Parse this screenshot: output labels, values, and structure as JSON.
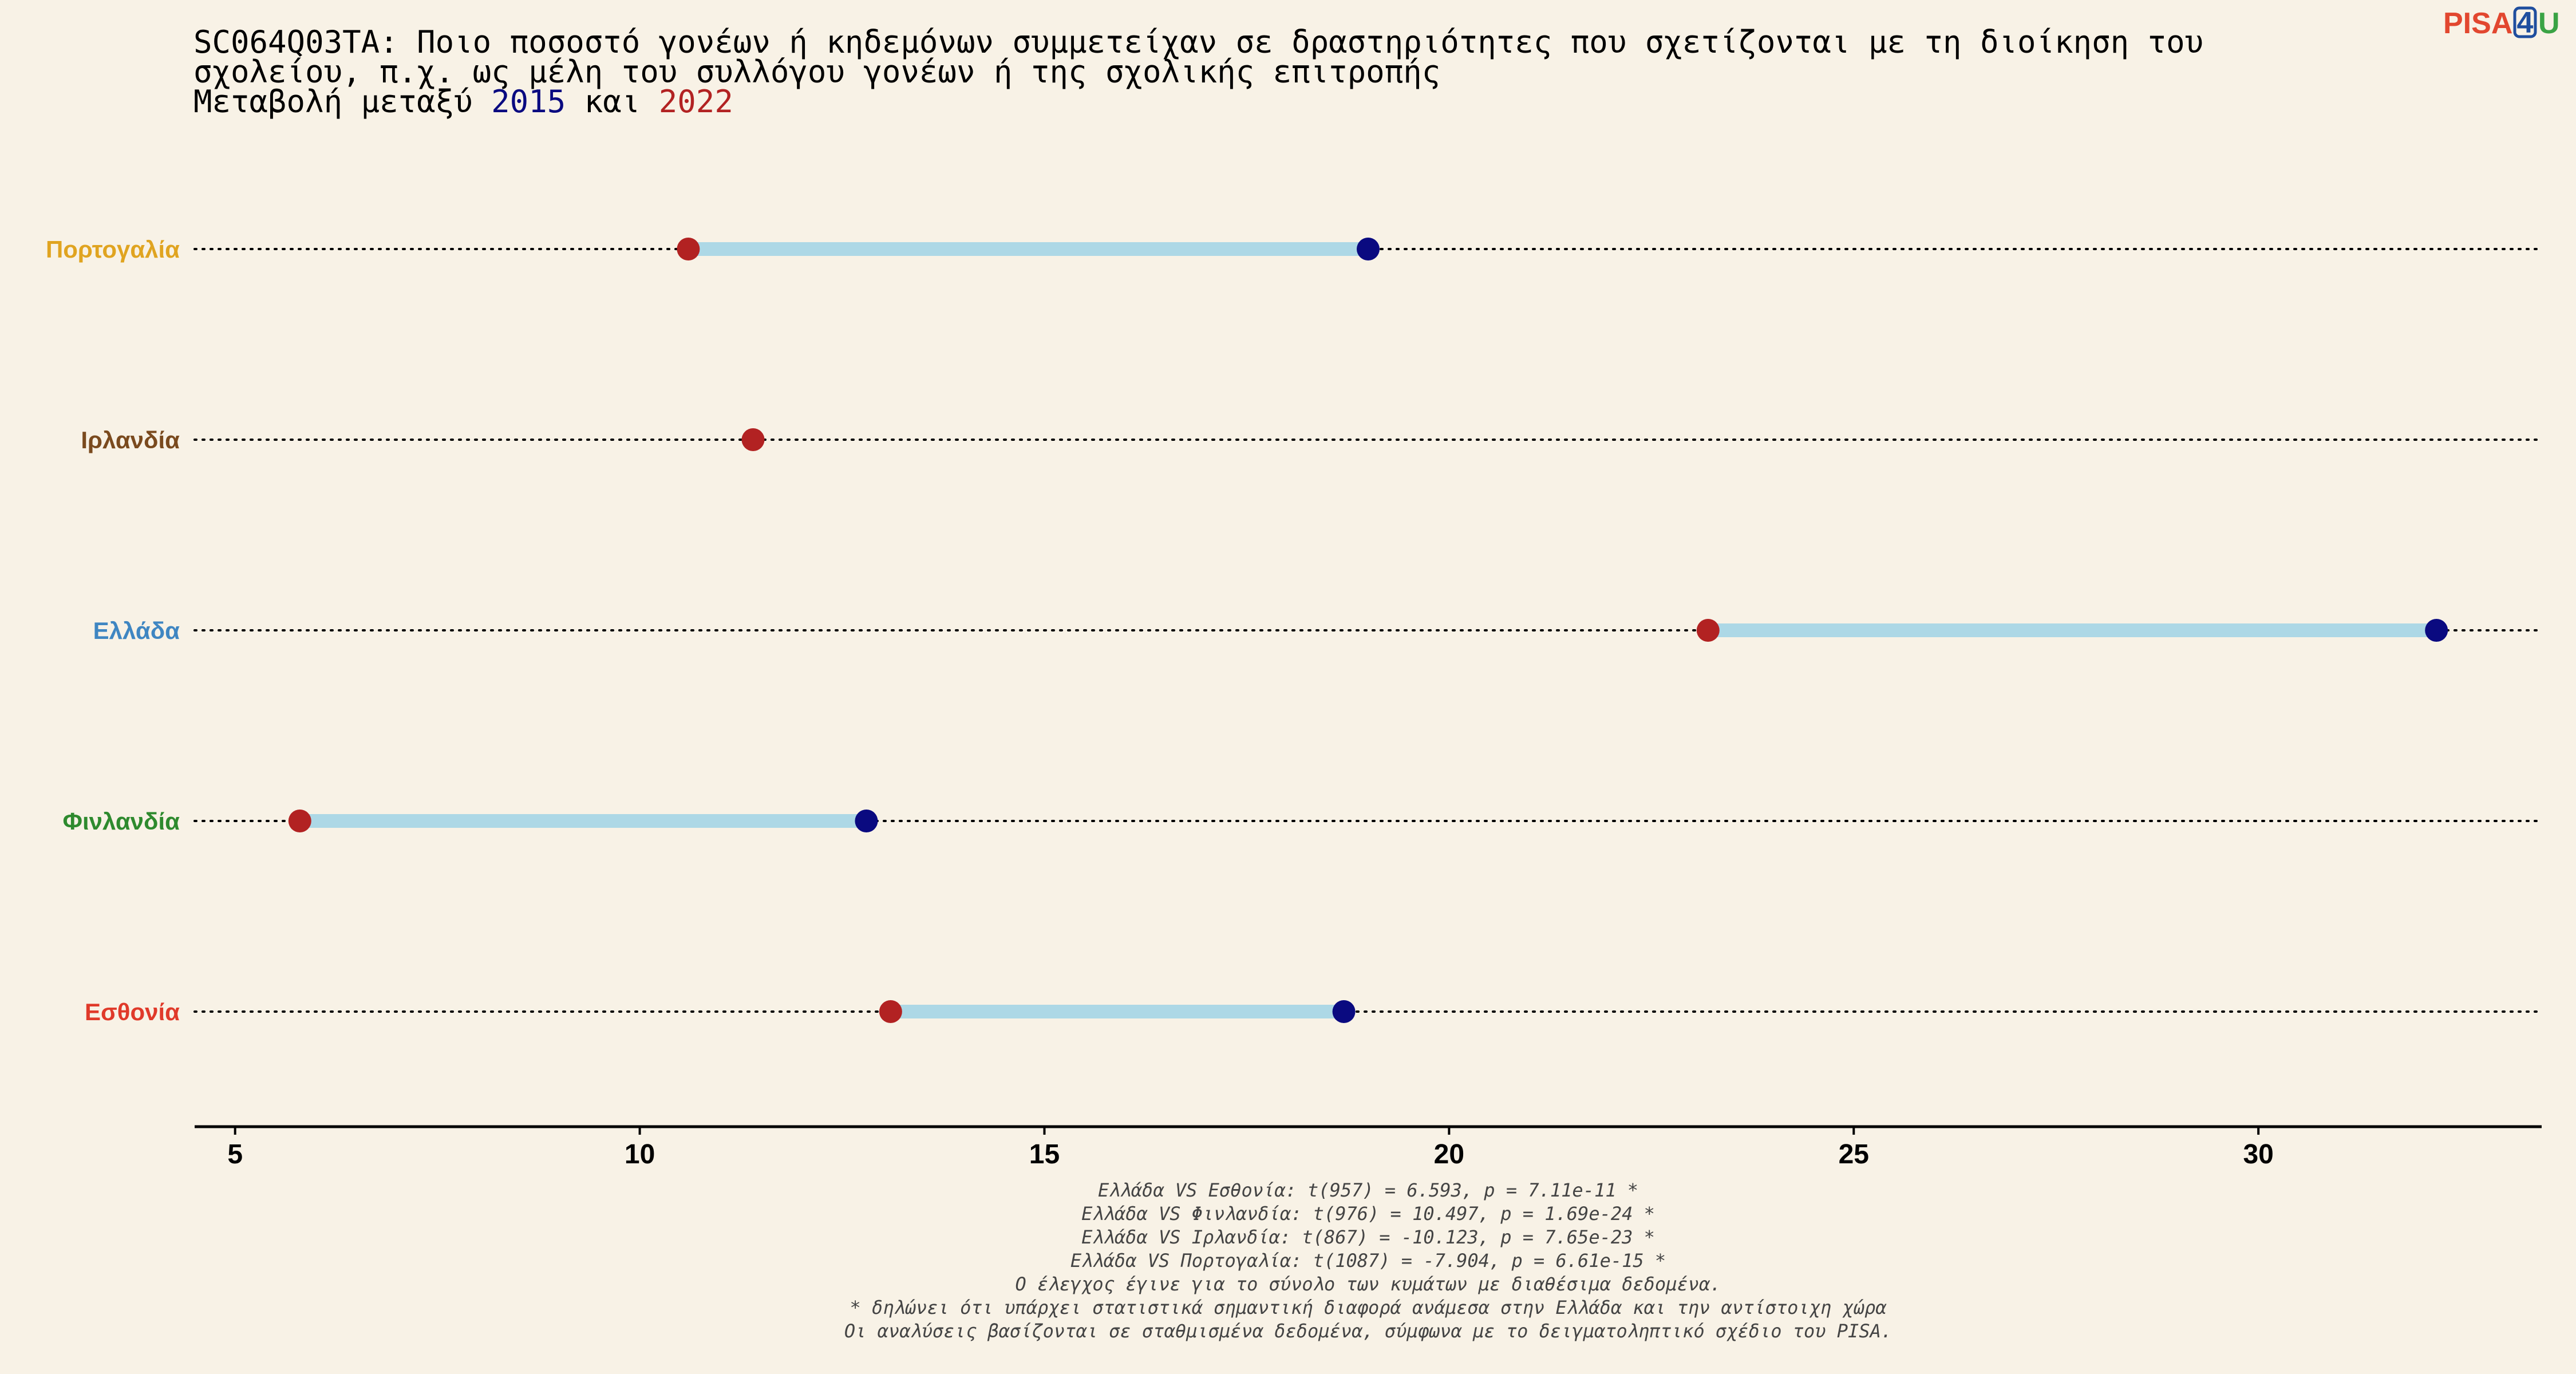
{
  "header": {
    "title_line1": "SC064Q03TA: Ποιο ποσοστό γονέων ή κηδεμόνων συμμετείχαν σε δραστηριότητες που σχετίζονται με τη διοίκηση του",
    "title_line2": "σχολείου, π.χ. ως μέλη του συλλόγου γονέων ή της σχολικής επιτροπής",
    "subtitle_prefix": "Μεταβολή μεταξύ ",
    "subtitle_year1": "2015",
    "subtitle_mid": " και ",
    "subtitle_year2": "2022"
  },
  "logo": {
    "part1": "PISA",
    "part2": "4",
    "part3": "U",
    "color1": "#e2472f",
    "color2": "#1f4e9e",
    "color3": "#3aa345"
  },
  "colors": {
    "background": "#f8f2e6",
    "year_2015": "#0a0a80",
    "year_2022": "#b22222",
    "segment": "#add8e6",
    "guide": "#000000"
  },
  "chart_data": {
    "type": "dumbbell",
    "series": [
      {
        "name": "2015",
        "color": "#0a0a80"
      },
      {
        "name": "2022",
        "color": "#b22222"
      }
    ],
    "categories": [
      "Πορτογαλία",
      "Ιρλανδία",
      "Ελλάδα",
      "Φινλανδία",
      "Εσθονία"
    ],
    "category_colors": [
      "#e0a420",
      "#7a4a1e",
      "#3f86c2",
      "#2e8a2e",
      "#e03a2a"
    ],
    "values_2015": [
      19.0,
      null,
      32.2,
      12.8,
      18.7
    ],
    "values_2022": [
      10.6,
      11.4,
      23.2,
      5.8,
      13.1
    ],
    "xlim": [
      4.5,
      33.5
    ],
    "xticks": [
      5,
      10,
      15,
      20,
      25,
      30
    ],
    "xtick_labels": [
      "5",
      "10",
      "15",
      "20",
      "25",
      "30"
    ],
    "grid": false
  },
  "notes": [
    "Ελλάδα VS Εσθονία: t(957) = 6.593, p = 7.11e-11 *",
    "Ελλάδα VS Φινλανδία: t(976) = 10.497, p = 1.69e-24 *",
    "Ελλάδα VS Ιρλανδία: t(867) = -10.123, p = 7.65e-23 *",
    "Ελλάδα VS Πορτογαλία: t(1087) = -7.904, p = 6.61e-15 *",
    "Ο έλεγχος έγινε για το σύνολο των κυμάτων με διαθέσιμα δεδομένα.",
    "* δηλώνει ότι υπάρχει στατιστικά σημαντική διαφορά ανάμεσα στην Ελλάδα και την αντίστοιχη χώρα",
    "Οι αναλύσεις βασίζονται σε σταθμισμένα δεδομένα, σύμφωνα με το δειγματοληπτικό σχέδιο του PISA."
  ]
}
